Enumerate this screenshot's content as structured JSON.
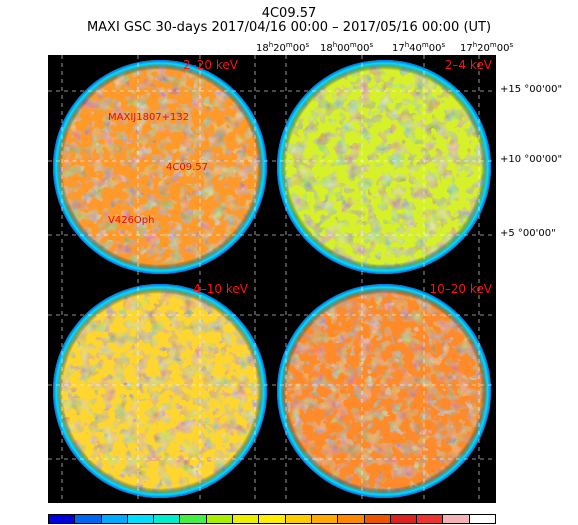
{
  "header": {
    "source_name": "4C09.57",
    "subtitle": "MAXI GSC 30-days 2017/04/16 00:00 – 2017/05/16 00:00 (UT)"
  },
  "ra_ticks": [
    {
      "h": "18",
      "m": "20",
      "s": "00"
    },
    {
      "h": "18",
      "m": "00",
      "s": "00"
    },
    {
      "h": "17",
      "m": "40",
      "s": "00"
    },
    {
      "h": "17",
      "m": "20",
      "s": "00"
    }
  ],
  "dec_ticks": [
    "+15 °00'00\"",
    "+10 °00'00\"",
    "+5 °00'00\""
  ],
  "panels": [
    {
      "band": "2–20 keV",
      "tone": "orange",
      "sources": [
        "MAXIJ1807+132",
        "4C09.57",
        "V426Oph"
      ]
    },
    {
      "band": "2–4 keV",
      "tone": "yellowgreen",
      "sources": []
    },
    {
      "band": "4–10 keV",
      "tone": "yellow",
      "sources": []
    },
    {
      "band": "10–20 keV",
      "tone": "orangered",
      "sources": []
    }
  ],
  "colorbar": [
    "#0000dd",
    "#0066ee",
    "#00aaff",
    "#00ddff",
    "#00eecc",
    "#44ee44",
    "#aaee00",
    "#eeee00",
    "#ffee00",
    "#ffcc00",
    "#ffaa00",
    "#ff8800",
    "#ee5500",
    "#dd2222",
    "#ee3333",
    "#f5b0b8",
    "#ffffff"
  ]
}
